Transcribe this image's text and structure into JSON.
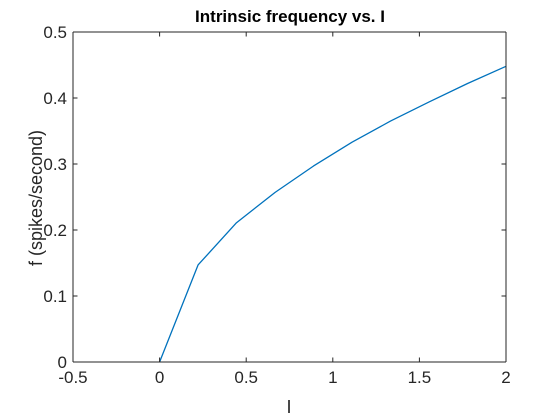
{
  "chart_data": {
    "type": "line",
    "title": "Intrinsic frequency vs. I",
    "xlabel": "I",
    "ylabel": "f (spikes/second)",
    "xlim": [
      -0.5,
      2
    ],
    "ylim": [
      0,
      0.5
    ],
    "xticks": [
      -0.5,
      0,
      0.5,
      1,
      1.5,
      2
    ],
    "xtick_labels": [
      "-0.5",
      "0",
      "0.5",
      "1",
      "1.5",
      "2"
    ],
    "yticks": [
      0,
      0.1,
      0.2,
      0.3,
      0.4,
      0.5
    ],
    "ytick_labels": [
      "0",
      "0.1",
      "0.2",
      "0.3",
      "0.4",
      "0.5"
    ],
    "grid": false,
    "series": [
      {
        "color": "#0072BD",
        "x": [
          0,
          0.222,
          0.444,
          0.667,
          0.889,
          1.111,
          1.333,
          1.556,
          1.778,
          2.0
        ],
        "y": [
          0,
          0.147,
          0.211,
          0.257,
          0.297,
          0.333,
          0.365,
          0.394,
          0.422,
          0.448
        ]
      }
    ]
  }
}
